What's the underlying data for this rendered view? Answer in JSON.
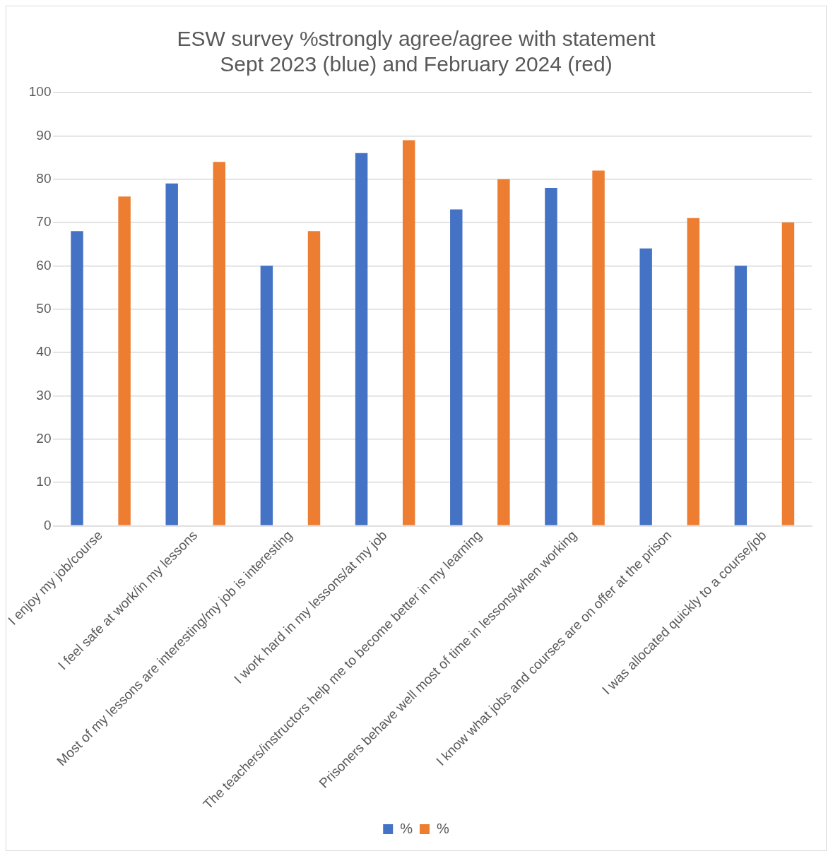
{
  "chart_data": {
    "type": "bar",
    "title": "ESW survey %strongly agree/agree with statement\nSept 2023 (blue) and February 2024 (red)",
    "categories": [
      "I enjoy my job/course",
      "I feel safe at work/in my lessons",
      "Most of my lessons are interesting/my job is interesting",
      "I work hard in my lessons/at my job",
      "The teachers/instructors help me to become better in my learning",
      "Prisoners behave well most of time in lessons/when working",
      "I know what jobs and courses are on offer at the prison",
      "I was allocated quickly to a course/job"
    ],
    "series": [
      {
        "name": "%",
        "color": "#4472c4",
        "values": [
          68,
          79,
          60,
          86,
          73,
          78,
          64,
          60
        ]
      },
      {
        "name": "%",
        "color": "#ed7d31",
        "values": [
          76,
          84,
          68,
          89,
          80,
          82,
          71,
          70
        ]
      }
    ],
    "ylim": [
      0,
      100
    ],
    "yticks": [
      0,
      10,
      20,
      30,
      40,
      50,
      60,
      70,
      80,
      90,
      100
    ],
    "grid": "y",
    "legend": "bottom"
  }
}
